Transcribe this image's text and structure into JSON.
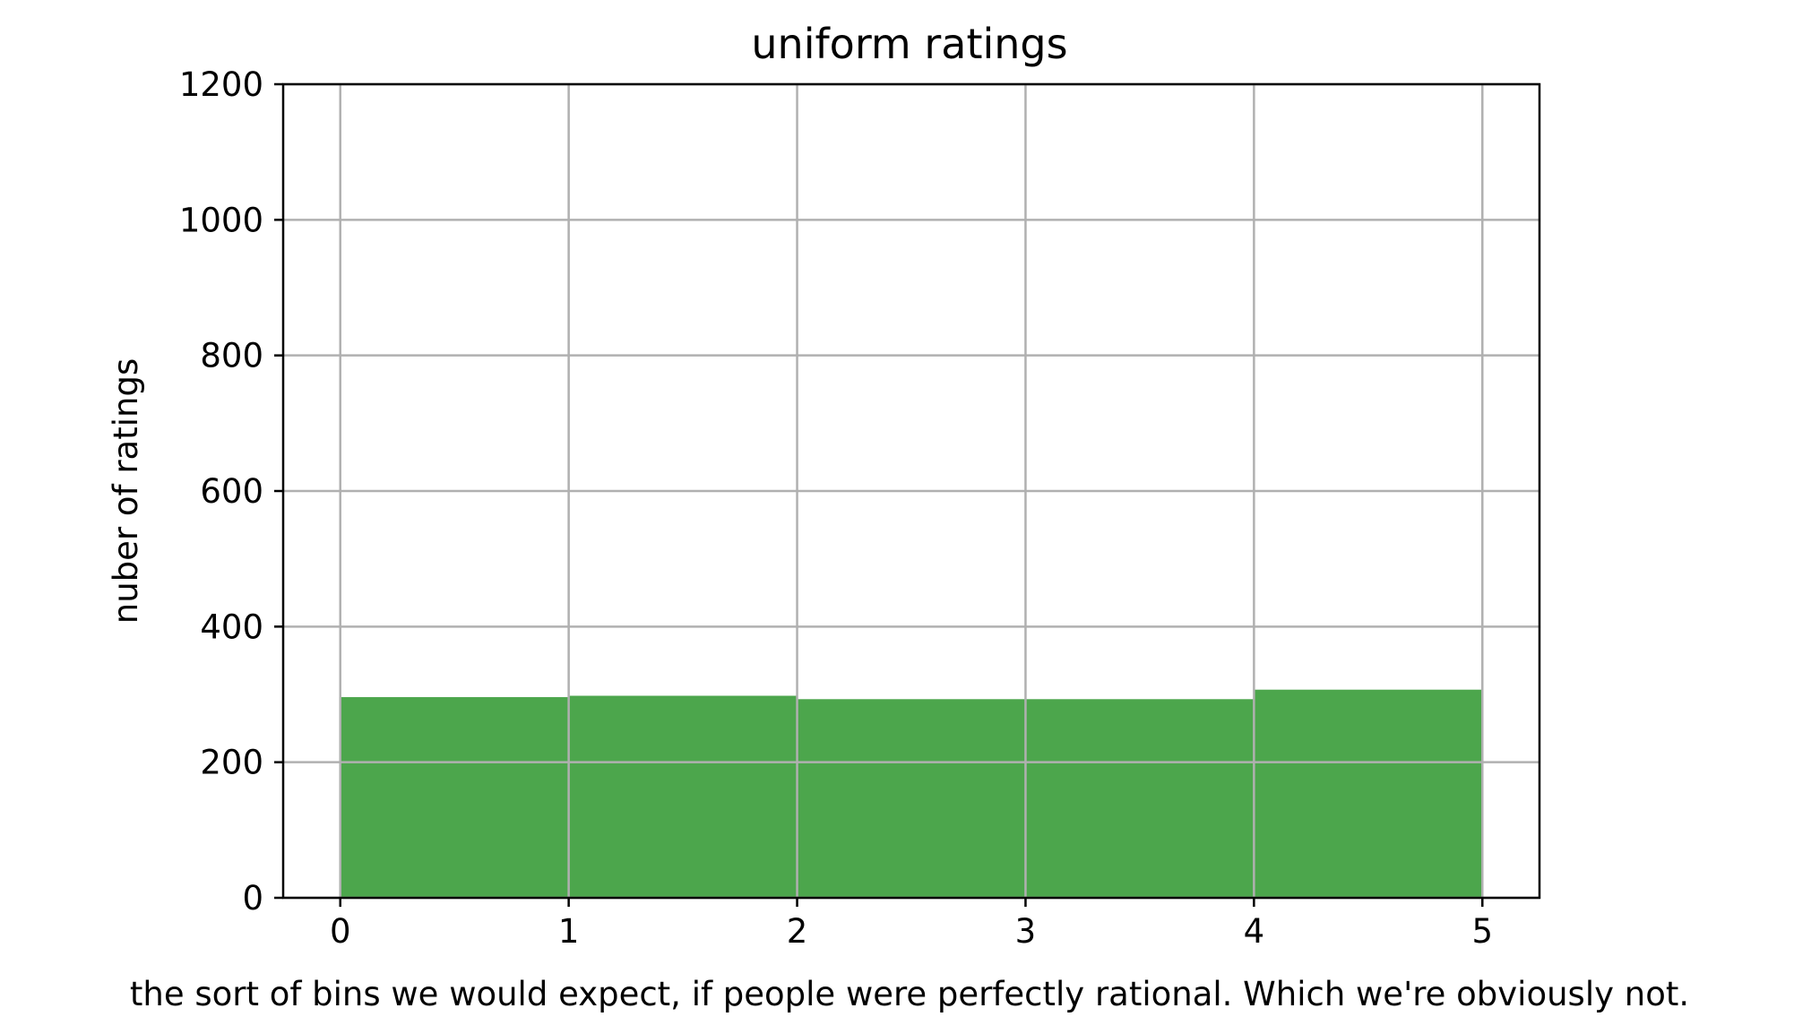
{
  "chart_data": {
    "type": "bar",
    "title": "uniform ratings",
    "xlabel": "the sort of bins we would expect, if people were perfectly rational. Which we're obviously not.",
    "ylabel": "nuber of ratings",
    "bins": [
      {
        "x0": 0,
        "x1": 1,
        "value": 296
      },
      {
        "x0": 1,
        "x1": 2,
        "value": 298
      },
      {
        "x0": 2,
        "x1": 3,
        "value": 293
      },
      {
        "x0": 3,
        "x1": 4,
        "value": 293
      },
      {
        "x0": 4,
        "x1": 5,
        "value": 307
      }
    ],
    "xlim": [
      -0.25,
      5.25
    ],
    "ylim": [
      0,
      1200
    ],
    "xticks": [
      "0",
      "1",
      "2",
      "3",
      "4",
      "5"
    ],
    "yticks": [
      "0",
      "200",
      "400",
      "600",
      "800",
      "1000",
      "1200"
    ],
    "grid": true,
    "bar_color": "#4ca64c",
    "grid_color": "#b0b0b0"
  }
}
